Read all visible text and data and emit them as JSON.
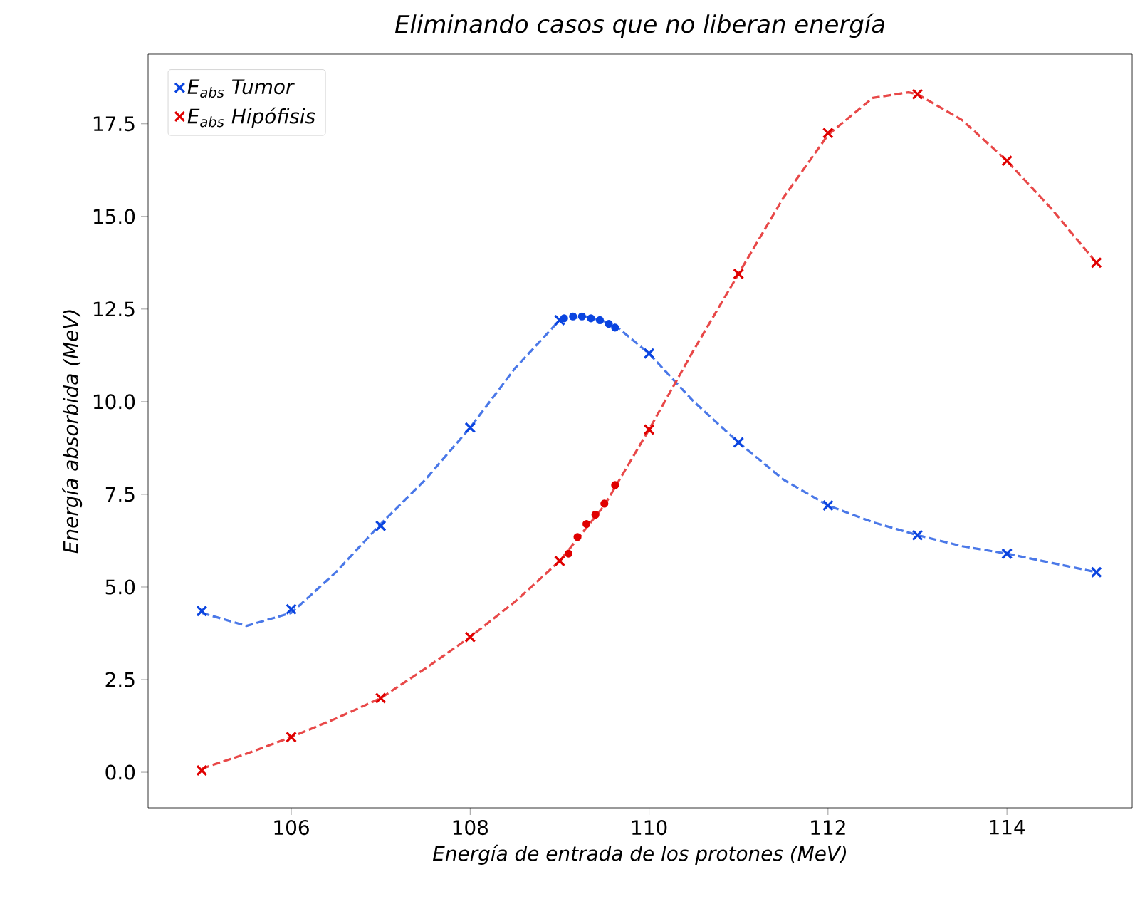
{
  "chart_data": {
    "type": "scatter",
    "title": "Eliminando casos que no liberan energía",
    "xlabel": "Energía de entrada de los protones (MeV)",
    "ylabel": "Energía absorbida (MeV)",
    "xlim": [
      104.4,
      115.4
    ],
    "ylim": [
      -0.96,
      19.38
    ],
    "xticks": [
      106,
      108,
      110,
      112,
      114
    ],
    "yticks": [
      {
        "value": 0,
        "label": "0.0"
      },
      2.5,
      {
        "value": 5,
        "label": "5.0"
      },
      7.5,
      {
        "value": 10,
        "label": "10.0"
      },
      12.5,
      {
        "value": 15,
        "label": "15.0"
      },
      17.5
    ],
    "legend": "top left",
    "marker": "cross",
    "series": [
      {
        "name": "E$_{abs}$ Tumor",
        "color": "#0a44e0",
        "x": [
          105,
          106,
          107,
          108,
          109,
          110,
          111,
          112,
          113,
          114,
          115
        ],
        "values": [
          4.35,
          4.4,
          6.65,
          9.3,
          12.2,
          11.3,
          8.9,
          7.2,
          6.4,
          5.9,
          5.4
        ]
      },
      {
        "name": "E$_{abs}$ Hipófisis",
        "color": "#e00000",
        "x": [
          105,
          106,
          107,
          108,
          109,
          110,
          111,
          112,
          113,
          114,
          115
        ],
        "values": [
          0.05,
          0.95,
          2.0,
          3.65,
          5.7,
          9.25,
          13.45,
          17.25,
          18.3,
          16.5,
          13.75
        ]
      },
      {
        "color": "#0a44e0",
        "marker": "circle",
        "x": [
          109.05,
          109.15,
          109.25,
          109.35,
          109.45,
          109.55,
          109.62
        ],
        "values": [
          12.25,
          12.3,
          12.3,
          12.25,
          12.2,
          12.1,
          12.0
        ]
      },
      {
        "color": "#e00000",
        "marker": "circle",
        "x": [
          109.1,
          109.2,
          109.3,
          109.4,
          109.5,
          109.62
        ],
        "values": [
          5.9,
          6.35,
          6.7,
          6.95,
          7.25,
          7.75
        ]
      },
      {
        "type": "line",
        "line_style": "dashed",
        "marker": "none",
        "color": "#4a78e8",
        "x": [
          105,
          105.5,
          106,
          106.5,
          107,
          107.5,
          108,
          108.5,
          109,
          109.3,
          109.6,
          110,
          110.5,
          111,
          111.5,
          112,
          112.5,
          113,
          113.5,
          114,
          114.5,
          115
        ],
        "values": [
          4.3,
          3.95,
          4.3,
          5.4,
          6.7,
          7.9,
          9.3,
          10.9,
          12.2,
          12.3,
          12.1,
          11.3,
          10.0,
          8.9,
          7.9,
          7.2,
          6.75,
          6.4,
          6.1,
          5.9,
          5.65,
          5.4
        ]
      },
      {
        "type": "line",
        "line_style": "dashed",
        "marker": "none",
        "color": "#e84848",
        "x": [
          105,
          105.5,
          106,
          106.5,
          107,
          107.5,
          108,
          108.5,
          109,
          109.5,
          110,
          110.5,
          111,
          111.5,
          112,
          112.5,
          112.9,
          113,
          113.5,
          114,
          114.5,
          115
        ],
        "values": [
          0.1,
          0.5,
          0.95,
          1.45,
          2.0,
          2.8,
          3.65,
          4.6,
          5.7,
          7.2,
          9.25,
          11.4,
          13.45,
          15.5,
          17.2,
          18.2,
          18.35,
          18.3,
          17.6,
          16.5,
          15.2,
          13.75
        ]
      }
    ]
  }
}
